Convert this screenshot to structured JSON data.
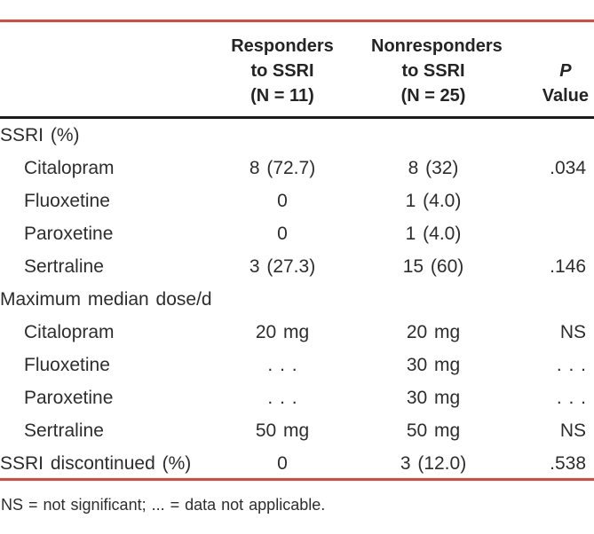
{
  "colors": {
    "rule_red": "#c25348",
    "rule_black": "#1b1b1b",
    "text": "#2d2d2d"
  },
  "table": {
    "header": {
      "responders": {
        "lines": [
          "Responders",
          "to SSRI",
          "(N = 11)"
        ]
      },
      "nonresponders": {
        "lines": [
          "Nonresponders",
          "to SSRI",
          "(N = 25)"
        ]
      },
      "p": {
        "line1": "P",
        "line2": "Value"
      }
    },
    "rows": [
      {
        "label": "SSRI (%)",
        "indent": false,
        "responders": "",
        "nonresponders": "",
        "p": ""
      },
      {
        "label": "Citalopram",
        "indent": true,
        "responders": "8 (72.7)",
        "nonresponders": "8 (32)",
        "p": ".034"
      },
      {
        "label": "Fluoxetine",
        "indent": true,
        "responders": "0",
        "nonresponders": "1 (4.0)",
        "p": ""
      },
      {
        "label": "Paroxetine",
        "indent": true,
        "responders": "0",
        "nonresponders": "1 (4.0)",
        "p": ""
      },
      {
        "label": "Sertraline",
        "indent": true,
        "responders": "3 (27.3)",
        "nonresponders": "15 (60)",
        "p": ".146"
      },
      {
        "label": "Maximum median dose/d",
        "indent": false,
        "responders": "",
        "nonresponders": "",
        "p": ""
      },
      {
        "label": "Citalopram",
        "indent": true,
        "responders": "20 mg",
        "nonresponders": "20 mg",
        "p": "NS"
      },
      {
        "label": "Fluoxetine",
        "indent": true,
        "responders": ". . .",
        "nonresponders": "30 mg",
        "p": ". . ."
      },
      {
        "label": "Paroxetine",
        "indent": true,
        "responders": ". . .",
        "nonresponders": "30 mg",
        "p": ". . ."
      },
      {
        "label": "Sertraline",
        "indent": true,
        "responders": "50 mg",
        "nonresponders": "50 mg",
        "p": "NS"
      },
      {
        "label": "SSRI discontinued (%)",
        "indent": false,
        "responders": "0",
        "nonresponders": "3 (12.0)",
        "p": ".538"
      }
    ],
    "footnote": "NS = not significant; ... = data not applicable."
  }
}
